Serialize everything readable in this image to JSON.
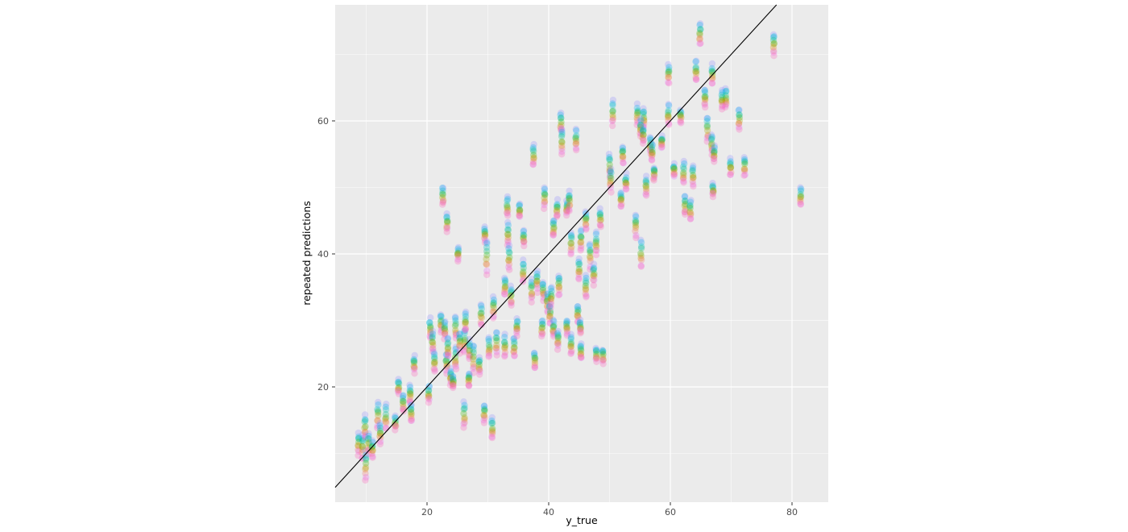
{
  "chart_data": {
    "type": "scatter",
    "title": "",
    "xlabel": "y_true",
    "ylabel": "repeated predictions",
    "xlim": [
      4.9,
      85.96
    ],
    "ylim": [
      2.67,
      77.45
    ],
    "x_major_ticks": [
      20,
      40,
      60,
      80
    ],
    "y_major_ticks": [
      20,
      40,
      60
    ],
    "x_minor_ticks": [
      10,
      30,
      50,
      70
    ],
    "y_minor_ticks": [
      10,
      30,
      50,
      70
    ],
    "grid": "on",
    "legend": "none",
    "panel_bg": "#EBEBEB",
    "grid_major_color": "#FFFFFF",
    "grid_minor_color": "#FFFFFF",
    "axis_text_color": "#4D4D4D",
    "axis_title_color": "#000000",
    "tick_mark_color": "#333333",
    "identity_line": {
      "slope": 1,
      "intercept": 0,
      "color": "#000000",
      "width": 1.1
    },
    "point": {
      "radius": 4.2,
      "alpha": 0.28,
      "per_cluster": 10
    },
    "palette": [
      "#9590FF",
      "#00B0F6",
      "#00BFC4",
      "#00BF7D",
      "#39B600",
      "#A3A500",
      "#D89000",
      "#F8766D",
      "#E76BF3",
      "#FF62BC"
    ],
    "clusters_format": [
      "y_true",
      "prediction_mean",
      "prediction_half_spread"
    ],
    "clusters": [
      [
        8.7,
        11.5,
        1.6
      ],
      [
        9.4,
        11.0,
        1.9
      ],
      [
        9.8,
        14.0,
        1.7
      ],
      [
        9.9,
        8.2,
        2.1
      ],
      [
        10.4,
        11.5,
        1.5
      ],
      [
        11.0,
        10.6,
        1.2
      ],
      [
        11.9,
        15.8,
        1.9
      ],
      [
        12.3,
        13.0,
        1.5
      ],
      [
        13.2,
        15.4,
        1.8
      ],
      [
        14.8,
        14.6,
        0.9
      ],
      [
        15.3,
        20.0,
        1.0
      ],
      [
        16.1,
        17.5,
        1.3
      ],
      [
        17.2,
        18.9,
        1.3
      ],
      [
        17.4,
        16.1,
        1.2
      ],
      [
        17.9,
        23.4,
        1.2
      ],
      [
        20.3,
        19.0,
        1.2
      ],
      [
        20.5,
        28.7,
        1.5
      ],
      [
        20.9,
        26.7,
        1.5
      ],
      [
        21.2,
        23.7,
        1.3
      ],
      [
        22.3,
        29.6,
        1.4
      ],
      [
        22.9,
        28.6,
        1.3
      ],
      [
        23.2,
        23.6,
        1.4
      ],
      [
        23.4,
        25.9,
        1.4
      ],
      [
        23.9,
        21.5,
        1.3
      ],
      [
        24.3,
        20.8,
        0.8
      ],
      [
        24.7,
        24.3,
        1.6
      ],
      [
        24.7,
        28.9,
        1.6
      ],
      [
        25.4,
        26.7,
        1.5
      ],
      [
        26.2,
        26.9,
        1.7
      ],
      [
        26.9,
        21.1,
        1.1
      ],
      [
        27.0,
        25.5,
        1.5
      ],
      [
        27.6,
        24.3,
        2.1
      ],
      [
        28.6,
        23.2,
        1.1
      ],
      [
        26.1,
        15.8,
        1.9
      ],
      [
        26.3,
        29.8,
        1.5
      ],
      [
        28.9,
        30.7,
        1.6
      ],
      [
        29.4,
        16.0,
        1.3
      ],
      [
        29.5,
        43.0,
        1.1
      ],
      [
        29.8,
        39.5,
        2.4
      ],
      [
        30.2,
        25.9,
        1.4
      ],
      [
        30.7,
        13.8,
        1.6
      ],
      [
        30.9,
        31.9,
        1.5
      ],
      [
        31.4,
        26.6,
        1.7
      ],
      [
        32.8,
        26.1,
        1.6
      ],
      [
        32.8,
        35.2,
        1.4
      ],
      [
        33.2,
        47.1,
        1.3
      ],
      [
        33.3,
        42.9,
        1.6
      ],
      [
        33.5,
        39.4,
        1.9
      ],
      [
        33.8,
        33.6,
        1.4
      ],
      [
        34.3,
        25.9,
        1.4
      ],
      [
        34.8,
        29.0,
        1.2
      ],
      [
        22.6,
        48.7,
        1.3
      ],
      [
        23.3,
        44.7,
        1.2
      ],
      [
        25.1,
        40.0,
        1.1
      ],
      [
        35.2,
        46.5,
        0.9
      ],
      [
        35.9,
        42.4,
        1.1
      ],
      [
        35.8,
        37.3,
        1.6
      ],
      [
        37.2,
        34.5,
        1.7
      ],
      [
        37.7,
        24.0,
        1.3
      ],
      [
        38.1,
        35.9,
        1.5
      ],
      [
        39.1,
        34.5,
        1.4
      ],
      [
        39.8,
        32.8,
        1.5
      ],
      [
        40.2,
        31.0,
        1.6
      ],
      [
        38.9,
        28.8,
        1.2
      ],
      [
        40.4,
        33.5,
        1.5
      ],
      [
        41.7,
        35.3,
        1.5
      ],
      [
        40.8,
        28.8,
        1.1
      ],
      [
        41.5,
        27.1,
        1.4
      ],
      [
        40.8,
        43.8,
        1.2
      ],
      [
        39.3,
        48.5,
        1.6
      ],
      [
        41.4,
        46.7,
        1.3
      ],
      [
        43.0,
        46.9,
        1.0
      ],
      [
        43.4,
        47.9,
        1.4
      ],
      [
        43.0,
        29.0,
        1.0
      ],
      [
        43.7,
        26.3,
        1.4
      ],
      [
        45.3,
        25.4,
        1.2
      ],
      [
        43.7,
        41.6,
        1.5
      ],
      [
        44.8,
        31.0,
        1.2
      ],
      [
        45.2,
        29.0,
        0.9
      ],
      [
        45.3,
        42.1,
        1.4
      ],
      [
        45.0,
        37.7,
        1.5
      ],
      [
        46.1,
        35.1,
        1.7
      ],
      [
        46.1,
        45.0,
        1.5
      ],
      [
        46.8,
        39.8,
        1.9
      ],
      [
        47.4,
        36.9,
        1.4
      ],
      [
        47.8,
        41.6,
        1.5
      ],
      [
        48.5,
        45.3,
        1.3
      ],
      [
        47.8,
        24.9,
        1.0
      ],
      [
        48.9,
        24.6,
        1.1
      ],
      [
        42.0,
        59.8,
        1.4
      ],
      [
        42.2,
        56.9,
        1.7
      ],
      [
        44.5,
        57.2,
        1.5
      ],
      [
        37.5,
        54.8,
        1.5
      ],
      [
        50.5,
        61.2,
        1.7
      ],
      [
        54.6,
        60.9,
        1.5
      ],
      [
        55.6,
        60.4,
        1.4
      ],
      [
        55.1,
        58.9,
        1.3
      ],
      [
        55.5,
        57.9,
        1.1
      ],
      [
        56.7,
        56.4,
        1.2
      ],
      [
        58.6,
        56.8,
        0.8
      ],
      [
        52.2,
        54.9,
        1.4
      ],
      [
        50.0,
        53.3,
        1.8
      ],
      [
        50.2,
        51.1,
        1.6
      ],
      [
        52.7,
        50.7,
        1.2
      ],
      [
        56.0,
        50.2,
        1.3
      ],
      [
        57.3,
        52.1,
        1.0
      ],
      [
        57.0,
        55.2,
        1.3
      ],
      [
        51.9,
        48.3,
        1.1
      ],
      [
        54.3,
        44.3,
        1.7
      ],
      [
        55.2,
        40.0,
        2.0
      ],
      [
        59.7,
        60.9,
        1.5
      ],
      [
        60.6,
        52.6,
        0.9
      ],
      [
        62.2,
        52.2,
        1.6
      ],
      [
        63.7,
        51.8,
        1.6
      ],
      [
        62.4,
        47.3,
        1.4
      ],
      [
        63.3,
        46.6,
        1.4
      ],
      [
        61.7,
        60.7,
        0.8
      ],
      [
        59.7,
        67.1,
        1.4
      ],
      [
        64.2,
        67.5,
        1.5
      ],
      [
        64.9,
        73.0,
        1.5
      ],
      [
        65.7,
        63.5,
        1.3
      ],
      [
        66.1,
        58.7,
        1.9
      ],
      [
        66.8,
        56.5,
        1.5
      ],
      [
        67.2,
        55.0,
        1.2
      ],
      [
        66.9,
        67.0,
        1.4
      ],
      [
        67.0,
        49.6,
        0.9
      ],
      [
        68.5,
        63.1,
        1.4
      ],
      [
        69.1,
        63.5,
        1.4
      ],
      [
        69.9,
        53.1,
        1.2
      ],
      [
        71.3,
        60.2,
        1.5
      ],
      [
        72.2,
        53.2,
        1.5
      ],
      [
        77.0,
        71.6,
        1.6
      ],
      [
        81.4,
        48.6,
        1.4
      ]
    ]
  }
}
